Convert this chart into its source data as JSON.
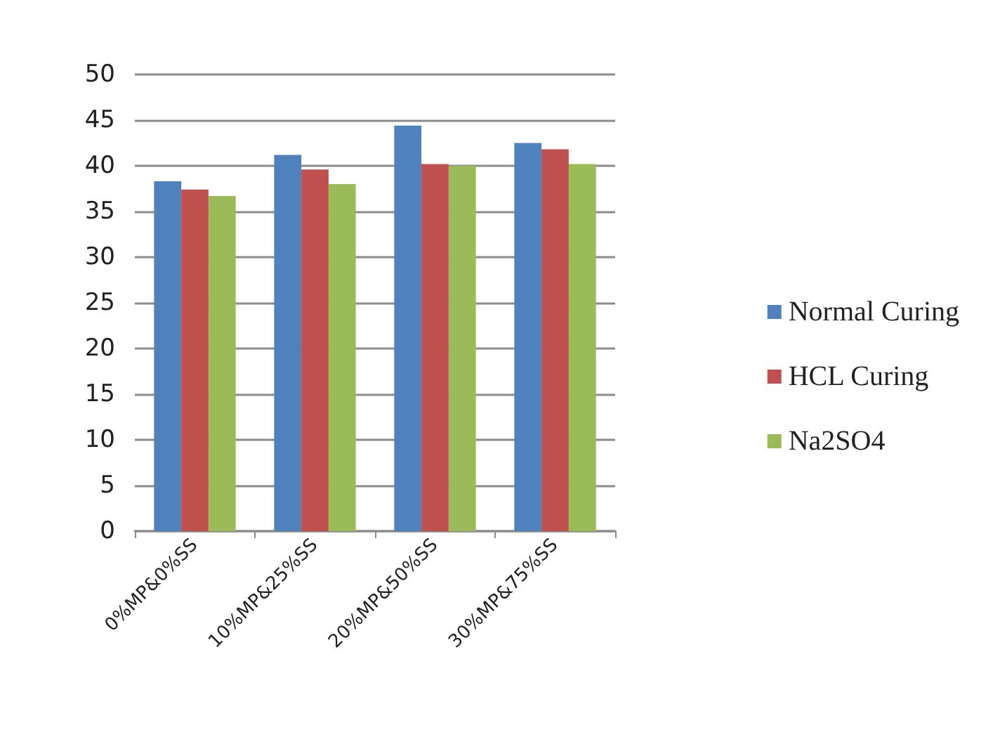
{
  "chart_data": {
    "type": "bar",
    "categories": [
      "0%MP&0%SS",
      "10%MP&25%SS",
      "20%MP&50%SS",
      "30%MP&75%SS"
    ],
    "series": [
      {
        "name": "Normal Curing",
        "color": "#4f81bd",
        "values": [
          38.3,
          41.2,
          44.4,
          42.5
        ]
      },
      {
        "name": "HCL Curing",
        "color": "#c0504d",
        "values": [
          37.4,
          39.6,
          40.2,
          41.8
        ]
      },
      {
        "name": "Na2SO4",
        "color": "#9bbb59",
        "values": [
          36.7,
          38.0,
          40.0,
          40.2
        ]
      }
    ],
    "ylim": [
      0,
      50
    ],
    "yticks": [
      0,
      5,
      10,
      15,
      20,
      25,
      30,
      35,
      40,
      45,
      50
    ],
    "grid": "y",
    "legend": "right"
  }
}
